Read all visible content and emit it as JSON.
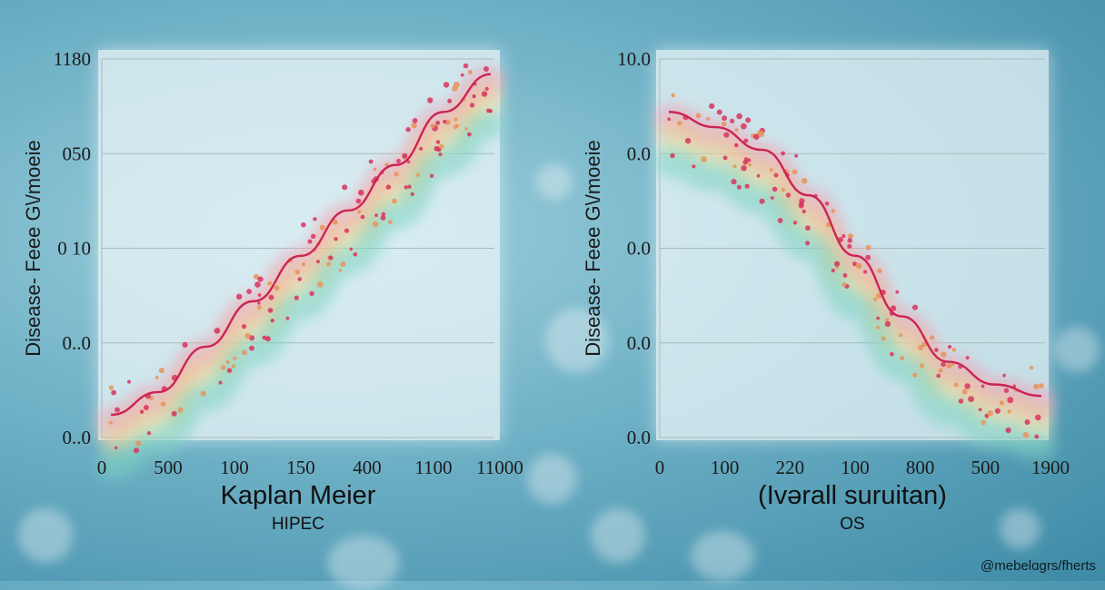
{
  "chart_data": [
    {
      "type": "line",
      "title": "Kaplan Meier",
      "subtitle": "HIPEC",
      "ylabel": "Disease- Feee G\\/moeie",
      "y_ticks": [
        "1180",
        "050",
        "0 10",
        "0..0",
        "0..0"
      ],
      "x_ticks": [
        "0",
        "500",
        "100",
        "150",
        "400",
        "1100",
        "11000"
      ],
      "series": [
        {
          "values": [
            0.06,
            0.12,
            0.24,
            0.36,
            0.48,
            0.6,
            0.72,
            0.86,
            0.96
          ]
        }
      ],
      "bands": [
        "red",
        "orange",
        "yellow",
        "teal"
      ],
      "scatter_points": 140
    },
    {
      "type": "line",
      "title": "(Ivərall suruitan)",
      "subtitle": "OS",
      "ylabel": "Disease- Feee G\\/moeie",
      "y_ticks": [
        "10.0",
        "0.0",
        "0.0",
        "0.0",
        "0.0"
      ],
      "x_ticks": [
        "0",
        "100",
        "220",
        "100",
        "800",
        "500",
        "1900"
      ],
      "series": [
        {
          "values": [
            0.86,
            0.82,
            0.76,
            0.64,
            0.48,
            0.32,
            0.2,
            0.14,
            0.11
          ]
        }
      ],
      "bands": [
        "red",
        "orange",
        "yellow",
        "teal"
      ],
      "scatter_points": 140
    }
  ],
  "credit": "@mebelɑgrs/fherts",
  "colors": {
    "line": "#cc2453",
    "points": "#d8325f",
    "points_alt": "#e8935a",
    "grid": "#a9b9be"
  }
}
